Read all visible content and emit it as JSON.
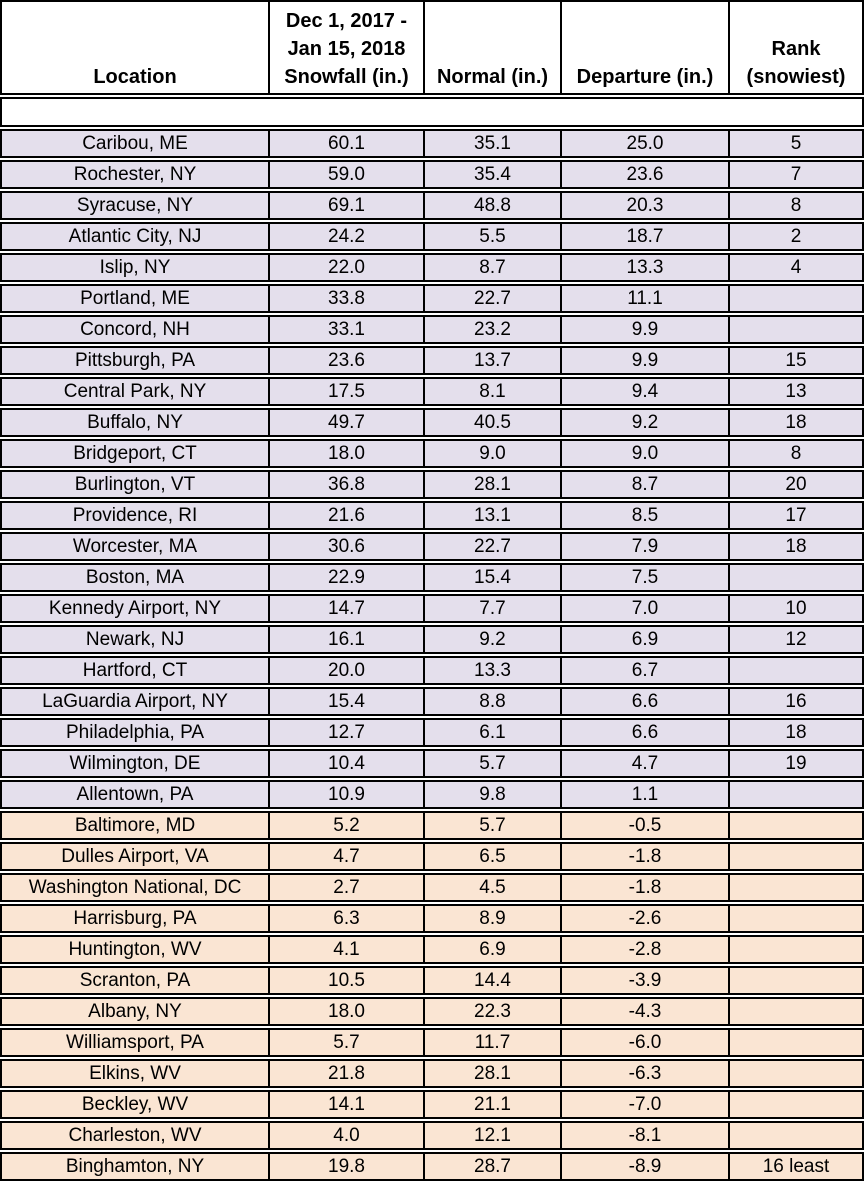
{
  "table": {
    "headers": [
      "Location",
      "Dec 1, 2017 -\nJan 15, 2018\nSnowfall (in.)",
      "Normal (in.)",
      "Departure (in.)",
      "Rank\n(snowiest)"
    ]
  },
  "colors": {
    "above_normal_row_bg": "#e4dfec",
    "below_normal_row_bg": "#fae5d3",
    "header_bg": "#ffffff",
    "border": "#000000",
    "text": "#000000"
  },
  "chart_data": {
    "type": "table",
    "columns": [
      "Location",
      "Dec 1, 2017 - Jan 15, 2018 Snowfall (in.)",
      "Normal (in.)",
      "Departure (in.)",
      "Rank (snowiest)"
    ],
    "rows": [
      {
        "location": "Caribou, ME",
        "snowfall": "60.1",
        "normal": "35.1",
        "departure": "25.0",
        "rank": "5",
        "group": "above_normal"
      },
      {
        "location": "Rochester, NY",
        "snowfall": "59.0",
        "normal": "35.4",
        "departure": "23.6",
        "rank": "7",
        "group": "above_normal"
      },
      {
        "location": "Syracuse, NY",
        "snowfall": "69.1",
        "normal": "48.8",
        "departure": "20.3",
        "rank": "8",
        "group": "above_normal"
      },
      {
        "location": "Atlantic City, NJ",
        "snowfall": "24.2",
        "normal": "5.5",
        "departure": "18.7",
        "rank": "2",
        "group": "above_normal"
      },
      {
        "location": "Islip, NY",
        "snowfall": "22.0",
        "normal": "8.7",
        "departure": "13.3",
        "rank": "4",
        "group": "above_normal"
      },
      {
        "location": "Portland, ME",
        "snowfall": "33.8",
        "normal": "22.7",
        "departure": "11.1",
        "rank": "",
        "group": "above_normal"
      },
      {
        "location": "Concord, NH",
        "snowfall": "33.1",
        "normal": "23.2",
        "departure": "9.9",
        "rank": "",
        "group": "above_normal"
      },
      {
        "location": "Pittsburgh, PA",
        "snowfall": "23.6",
        "normal": "13.7",
        "departure": "9.9",
        "rank": "15",
        "group": "above_normal"
      },
      {
        "location": "Central Park, NY",
        "snowfall": "17.5",
        "normal": "8.1",
        "departure": "9.4",
        "rank": "13",
        "group": "above_normal"
      },
      {
        "location": "Buffalo, NY",
        "snowfall": "49.7",
        "normal": "40.5",
        "departure": "9.2",
        "rank": "18",
        "group": "above_normal"
      },
      {
        "location": "Bridgeport, CT",
        "snowfall": "18.0",
        "normal": "9.0",
        "departure": "9.0",
        "rank": "8",
        "group": "above_normal"
      },
      {
        "location": "Burlington, VT",
        "snowfall": "36.8",
        "normal": "28.1",
        "departure": "8.7",
        "rank": "20",
        "group": "above_normal"
      },
      {
        "location": "Providence, RI",
        "snowfall": "21.6",
        "normal": "13.1",
        "departure": "8.5",
        "rank": "17",
        "group": "above_normal"
      },
      {
        "location": "Worcester, MA",
        "snowfall": "30.6",
        "normal": "22.7",
        "departure": "7.9",
        "rank": "18",
        "group": "above_normal"
      },
      {
        "location": "Boston, MA",
        "snowfall": "22.9",
        "normal": "15.4",
        "departure": "7.5",
        "rank": "",
        "group": "above_normal"
      },
      {
        "location": "Kennedy Airport, NY",
        "snowfall": "14.7",
        "normal": "7.7",
        "departure": "7.0",
        "rank": "10",
        "group": "above_normal"
      },
      {
        "location": "Newark, NJ",
        "snowfall": "16.1",
        "normal": "9.2",
        "departure": "6.9",
        "rank": "12",
        "group": "above_normal"
      },
      {
        "location": "Hartford, CT",
        "snowfall": "20.0",
        "normal": "13.3",
        "departure": "6.7",
        "rank": "",
        "group": "above_normal"
      },
      {
        "location": "LaGuardia Airport, NY",
        "snowfall": "15.4",
        "normal": "8.8",
        "departure": "6.6",
        "rank": "16",
        "group": "above_normal"
      },
      {
        "location": "Philadelphia, PA",
        "snowfall": "12.7",
        "normal": "6.1",
        "departure": "6.6",
        "rank": "18",
        "group": "above_normal"
      },
      {
        "location": "Wilmington, DE",
        "snowfall": "10.4",
        "normal": "5.7",
        "departure": "4.7",
        "rank": "19",
        "group": "above_normal"
      },
      {
        "location": "Allentown, PA",
        "snowfall": "10.9",
        "normal": "9.8",
        "departure": "1.1",
        "rank": "",
        "group": "above_normal"
      },
      {
        "location": "Baltimore, MD",
        "snowfall": "5.2",
        "normal": "5.7",
        "departure": "-0.5",
        "rank": "",
        "group": "below_normal"
      },
      {
        "location": "Dulles Airport, VA",
        "snowfall": "4.7",
        "normal": "6.5",
        "departure": "-1.8",
        "rank": "",
        "group": "below_normal"
      },
      {
        "location": "Washington National, DC",
        "snowfall": "2.7",
        "normal": "4.5",
        "departure": "-1.8",
        "rank": "",
        "group": "below_normal"
      },
      {
        "location": "Harrisburg, PA",
        "snowfall": "6.3",
        "normal": "8.9",
        "departure": "-2.6",
        "rank": "",
        "group": "below_normal"
      },
      {
        "location": "Huntington, WV",
        "snowfall": "4.1",
        "normal": "6.9",
        "departure": "-2.8",
        "rank": "",
        "group": "below_normal"
      },
      {
        "location": "Scranton, PA",
        "snowfall": "10.5",
        "normal": "14.4",
        "departure": "-3.9",
        "rank": "",
        "group": "below_normal"
      },
      {
        "location": "Albany, NY",
        "snowfall": "18.0",
        "normal": "22.3",
        "departure": "-4.3",
        "rank": "",
        "group": "below_normal"
      },
      {
        "location": "Williamsport, PA",
        "snowfall": "5.7",
        "normal": "11.7",
        "departure": "-6.0",
        "rank": "",
        "group": "below_normal"
      },
      {
        "location": "Elkins, WV",
        "snowfall": "21.8",
        "normal": "28.1",
        "departure": "-6.3",
        "rank": "",
        "group": "below_normal"
      },
      {
        "location": "Beckley, WV",
        "snowfall": "14.1",
        "normal": "21.1",
        "departure": "-7.0",
        "rank": "",
        "group": "below_normal"
      },
      {
        "location": "Charleston, WV",
        "snowfall": "4.0",
        "normal": "12.1",
        "departure": "-8.1",
        "rank": "",
        "group": "below_normal"
      },
      {
        "location": "Binghamton, NY",
        "snowfall": "19.8",
        "normal": "28.7",
        "departure": "-8.9",
        "rank": "16 least",
        "group": "below_normal"
      }
    ]
  }
}
